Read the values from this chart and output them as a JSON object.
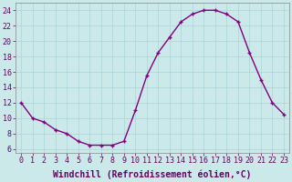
{
  "x": [
    0,
    1,
    2,
    3,
    4,
    5,
    6,
    7,
    8,
    9,
    10,
    11,
    12,
    13,
    14,
    15,
    16,
    17,
    18,
    19,
    20,
    21,
    22,
    23
  ],
  "y": [
    12,
    10,
    9.5,
    8.5,
    8,
    7,
    6.5,
    6.5,
    6.5,
    7,
    11,
    15.5,
    18.5,
    20.5,
    22.5,
    23.5,
    24,
    24,
    23.5,
    22.5,
    18.5,
    15,
    12,
    10.5
  ],
  "line_color": "#800080",
  "marker": "+",
  "xlabel": "Windchill (Refroidissement éolien,°C)",
  "ylim": [
    5.5,
    25
  ],
  "xlim": [
    -0.5,
    23.5
  ],
  "yticks": [
    6,
    8,
    10,
    12,
    14,
    16,
    18,
    20,
    22,
    24
  ],
  "xticks": [
    0,
    1,
    2,
    3,
    4,
    5,
    6,
    7,
    8,
    9,
    10,
    11,
    12,
    13,
    14,
    15,
    16,
    17,
    18,
    19,
    20,
    21,
    22,
    23
  ],
  "bg_color": "#cce9e9",
  "grid_color": "#b0d8d8",
  "xlabel_fontsize": 7,
  "tick_fontsize": 6,
  "label_color": "#660066"
}
